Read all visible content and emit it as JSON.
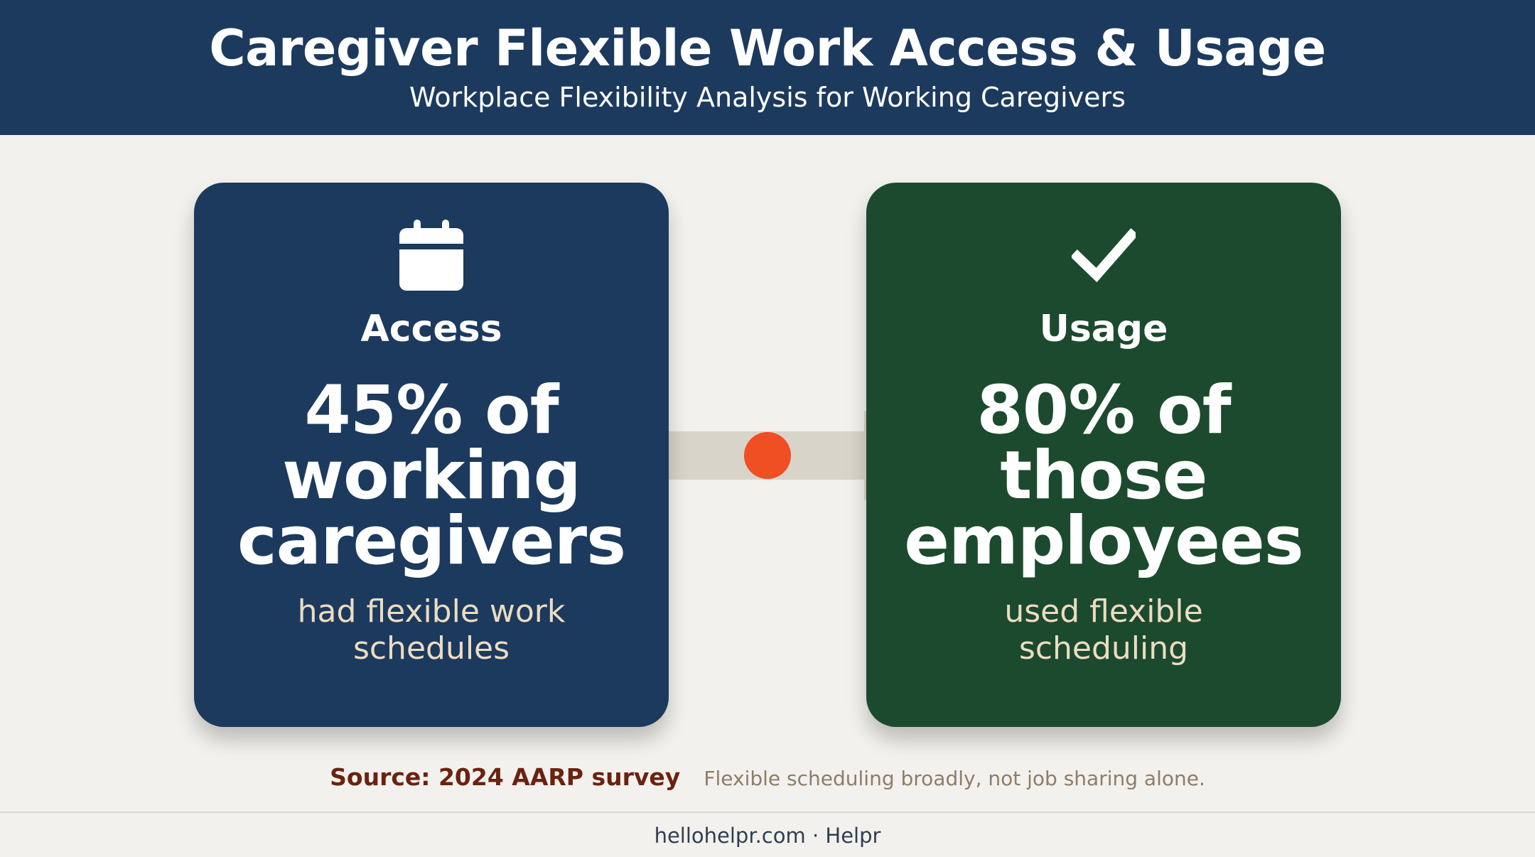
{
  "header": {
    "title": "Caregiver Flexible Work Access & Usage",
    "subtitle": "Workplace Flexibility Analysis for Working Caregivers"
  },
  "cards": [
    {
      "icon": "calendar-icon",
      "heading": "Access",
      "stat_lines": [
        "45% of",
        "working",
        "caregivers"
      ],
      "description_lines": [
        "had flexible work",
        "schedules"
      ],
      "color": "#1c3a5e"
    },
    {
      "icon": "checkmark-icon",
      "heading": "Usage",
      "stat_lines": [
        "80% of",
        "those",
        "employees"
      ],
      "description_lines": [
        "used flexible",
        "scheduling"
      ],
      "color": "#1c4a2e"
    }
  ],
  "connector": {
    "icon": "arrow-right-icon",
    "dot_color": "#f04e23",
    "arrow_color": "#d9d4ca"
  },
  "footnote": {
    "source": "Source: 2024 AARP survey",
    "note": "Flexible scheduling broadly, not job sharing alone."
  },
  "footer": {
    "text": "hellohelpr.com · Helpr"
  },
  "colors": {
    "header_bg": "#1c3a5e",
    "page_bg": "#f3f1ed",
    "description_text": "#ecdcc1",
    "source_text": "#6b2210"
  }
}
